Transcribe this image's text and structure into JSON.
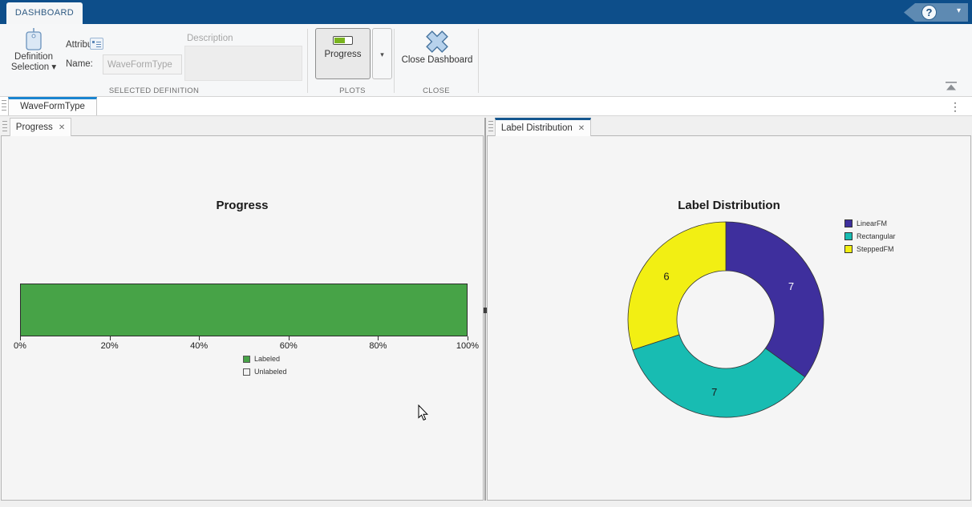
{
  "ribbon": {
    "tab_label": "DASHBOARD",
    "groups": {
      "selected_definition": {
        "label": "SELECTED DEFINITION",
        "definition_selection_label": "Definition Selection",
        "attribute_label": "Attribute",
        "name_label": "Name:",
        "name_value": "WaveFormType",
        "description_label": "Description",
        "description_value": ""
      },
      "plots": {
        "label": "PLOTS",
        "progress_button_label": "Progress"
      },
      "close": {
        "label": "CLOSE",
        "close_button_label": "Close Dashboard"
      }
    }
  },
  "document_tabs": {
    "waveformtype": "WaveFormType"
  },
  "panels": {
    "left": {
      "tab_label": "Progress"
    },
    "right": {
      "tab_label": "Label Distribution"
    }
  },
  "glyphs": {
    "close": "✕",
    "caret_down": "▾",
    "ellipsis": "⋮",
    "help": "?"
  },
  "colors": {
    "ribbon_blue": "#0d4e8a",
    "doc_tab_accent": "#1a84d0",
    "panel_tab_accent": "#14568e",
    "labeled_green": "#47a347",
    "panel_bg": "#f5f5f5"
  },
  "chart_data": [
    {
      "type": "bar",
      "title": "Progress",
      "orientation": "horizontal-stacked",
      "series": [
        {
          "name": "Labeled",
          "value": 100,
          "color": "#47a347"
        },
        {
          "name": "Unlabeled",
          "value": 0,
          "color": "#f2f2f2"
        }
      ],
      "xlim": [
        0,
        100
      ],
      "xticks": [
        "0%",
        "20%",
        "40%",
        "60%",
        "80%",
        "100%"
      ],
      "grid": false,
      "legend_position": "below-center"
    },
    {
      "type": "pie",
      "subtype": "donut",
      "title": "Label Distribution",
      "slices": [
        {
          "name": "LinearFM",
          "value": 7,
          "color": "#3e2f9d",
          "label_color": "#ffffff"
        },
        {
          "name": "Rectangular",
          "value": 7,
          "color": "#18bcb2",
          "label_color": "#1a1a1a"
        },
        {
          "name": "SteppedFM",
          "value": 6,
          "color": "#f2ef13",
          "label_color": "#1a1a1a"
        }
      ],
      "start_angle_deg": 0,
      "direction": "clockwise-from-top",
      "inner_radius_ratio": 0.5,
      "legend_position": "right"
    }
  ]
}
